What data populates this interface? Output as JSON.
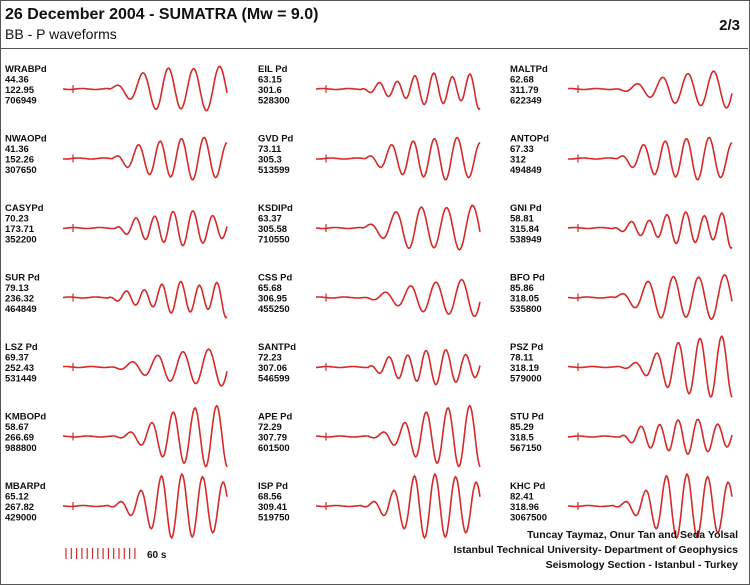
{
  "header": {
    "title": "26 December 2004 - SUMATRA (Mw = 9.0)",
    "subtitle": "BB - P waveforms",
    "page": "2/3"
  },
  "trace_color": "#d42a2a",
  "chart_data": {
    "type": "line",
    "description_of_marks": "P-wave broadband seismograms per station; labels list station name and three station parameters as printed",
    "columns": [
      [
        {
          "station": "WRABPd",
          "v1": "44.36",
          "v2": "122.95",
          "v3": "706949",
          "shape": 0
        },
        {
          "station": "NWAOPd",
          "v1": "41.36",
          "v2": "152.26",
          "v3": "307650",
          "shape": 1
        },
        {
          "station": "CASYPd",
          "v1": "70.23",
          "v2": "173.71",
          "v3": "352200",
          "shape": 2
        },
        {
          "station": "SUR Pd",
          "v1": "79.13",
          "v2": "236.32",
          "v3": "464849",
          "shape": 3
        },
        {
          "station": "LSZ Pd",
          "v1": "69.37",
          "v2": "252.43",
          "v3": "531449",
          "shape": 4
        },
        {
          "station": "KMBOPd",
          "v1": "58.67",
          "v2": "266.69",
          "v3": "988800",
          "shape": 5
        },
        {
          "station": "MBARPd",
          "v1": "65.12",
          "v2": "267.82",
          "v3": "429000",
          "shape": 6
        }
      ],
      [
        {
          "station": "EIL Pd",
          "v1": "63.15",
          "v2": "301.6",
          "v3": "528300",
          "shape": 3
        },
        {
          "station": "GVD Pd",
          "v1": "73.11",
          "v2": "305.3",
          "v3": "513599",
          "shape": 1
        },
        {
          "station": "KSDIPd",
          "v1": "63.37",
          "v2": "305.58",
          "v3": "710550",
          "shape": 0
        },
        {
          "station": "CSS Pd",
          "v1": "65.68",
          "v2": "306.95",
          "v3": "455250",
          "shape": 4
        },
        {
          "station": "SANTPd",
          "v1": "72.23",
          "v2": "307.06",
          "v3": "546599",
          "shape": 2
        },
        {
          "station": "APE Pd",
          "v1": "72.29",
          "v2": "307.79",
          "v3": "601500",
          "shape": 5
        },
        {
          "station": "ISP Pd",
          "v1": "68.56",
          "v2": "309.41",
          "v3": "519750",
          "shape": 6
        }
      ],
      [
        {
          "station": "MALTPd",
          "v1": "62.68",
          "v2": "311.79",
          "v3": "622349",
          "shape": 4
        },
        {
          "station": "ANTOPd",
          "v1": "67.33",
          "v2": "312",
          "v3": "494849",
          "shape": 1
        },
        {
          "station": "GNI Pd",
          "v1": "58.81",
          "v2": "315.84",
          "v3": "538949",
          "shape": 3
        },
        {
          "station": "BFO Pd",
          "v1": "85.86",
          "v2": "318.05",
          "v3": "535800",
          "shape": 0
        },
        {
          "station": "PSZ Pd",
          "v1": "78.11",
          "v2": "318.19",
          "v3": "579000",
          "shape": 5
        },
        {
          "station": "STU Pd",
          "v1": "85.29",
          "v2": "318.5",
          "v3": "567150",
          "shape": 2
        },
        {
          "station": "KHC Pd",
          "v1": "82.41",
          "v2": "318.96",
          "v3": "3067500",
          "shape": 6
        }
      ]
    ],
    "time_scale_label": "60 s"
  },
  "credits": {
    "line1": "Tuncay Taymaz, Onur Tan and Seda Yolsal",
    "line2": "Istanbul Technical University- Department of Geophysics",
    "line3": "Seismology Section - Istanbul - Turkey"
  }
}
